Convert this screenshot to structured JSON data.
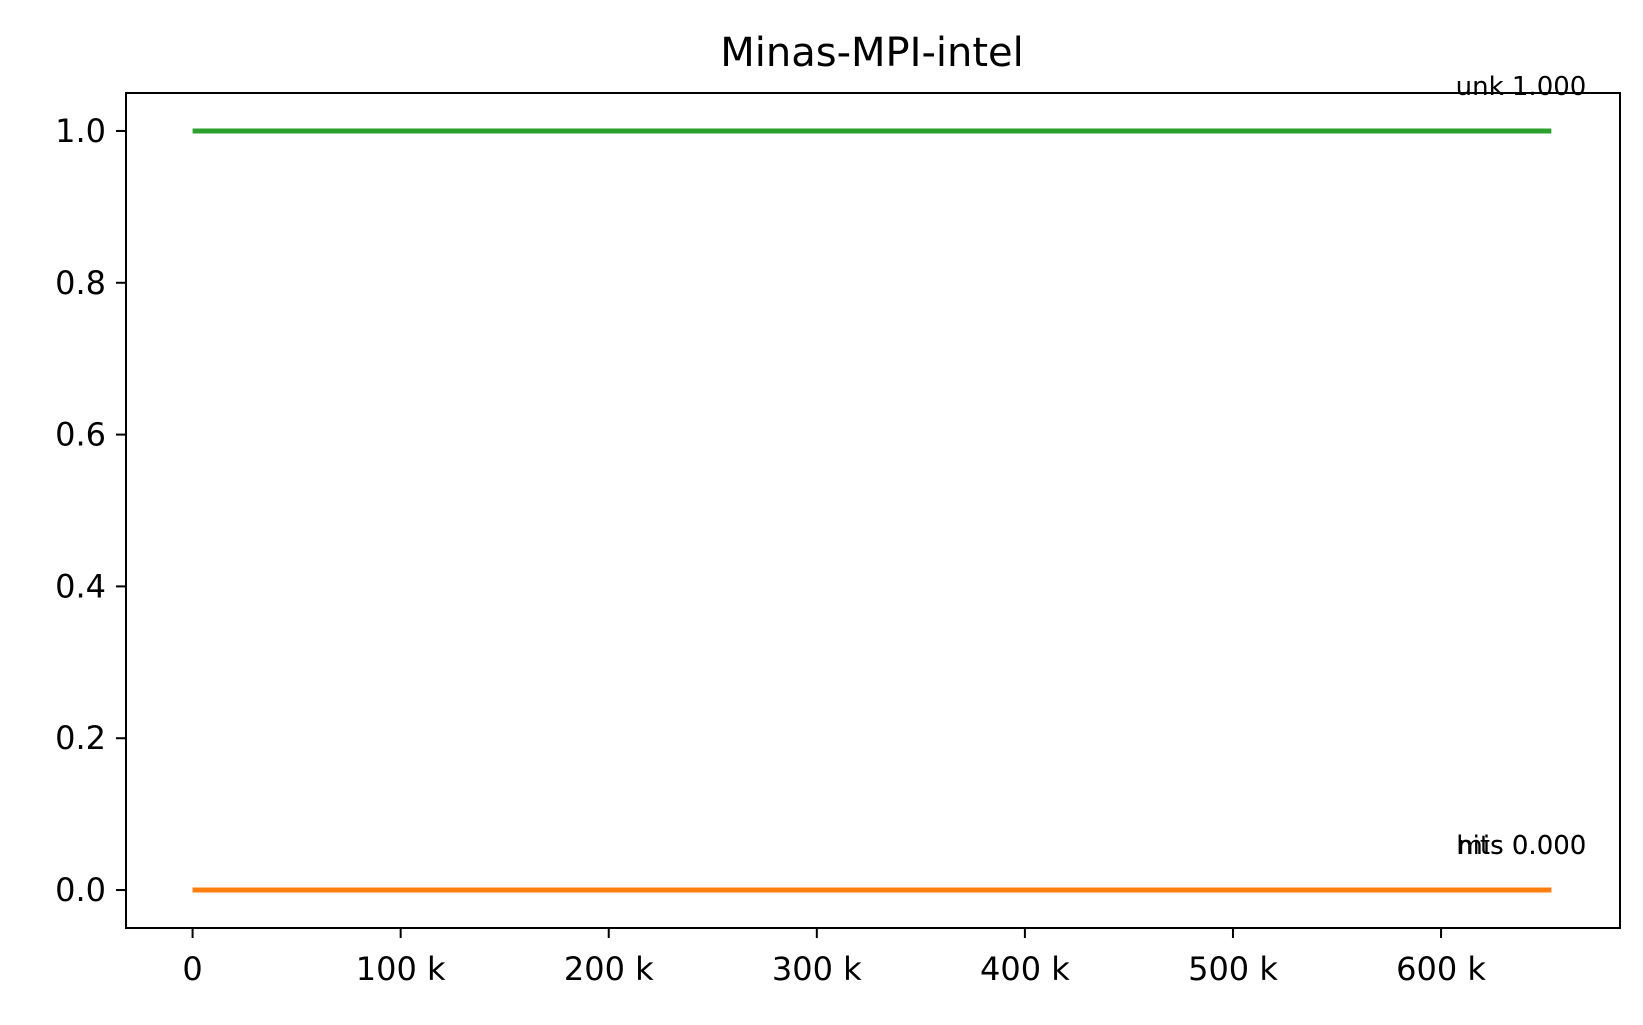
{
  "chart_data": {
    "type": "line",
    "title": "Minas-MPI-intel",
    "xlabel": "",
    "ylabel": "",
    "xlim": [
      -32000,
      686000
    ],
    "ylim": [
      -0.05,
      1.05
    ],
    "grid": false,
    "x_ticks": [
      0,
      100000,
      200000,
      300000,
      400000,
      500000,
      600000
    ],
    "x_tick_labels": [
      "0",
      "100 k",
      "200 k",
      "300 k",
      "400 k",
      "500 k",
      "600 k"
    ],
    "y_ticks": [
      0.0,
      0.2,
      0.4,
      0.6,
      0.8,
      1.0
    ],
    "y_tick_labels": [
      "0.0",
      "0.2",
      "0.4",
      "0.6",
      "0.8",
      "1.0"
    ],
    "series": [
      {
        "color": "#1f77b4",
        "x": [
          0,
          653000
        ],
        "y": [
          0.0,
          0.0
        ]
      },
      {
        "color": "#ff7f0e",
        "x": [
          0,
          653000
        ],
        "y": [
          0.0,
          0.0
        ]
      },
      {
        "color": "#2ca02c",
        "x": [
          0,
          653000
        ],
        "y": [
          1.0,
          1.0
        ]
      }
    ],
    "annotations": [
      {
        "text": "unk 1.000",
        "x": 653000,
        "y": 1.0
      },
      {
        "text": "hits 0.000",
        "x": 653000,
        "y": 0.0
      },
      {
        "text": "mis 0.000",
        "x": 653000,
        "y": 0.0
      }
    ]
  }
}
